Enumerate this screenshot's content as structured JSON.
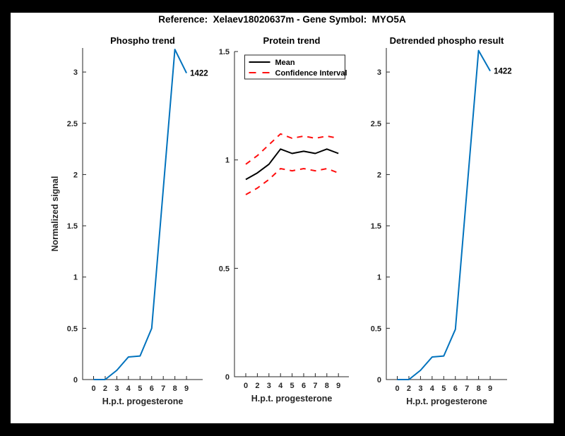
{
  "figure": {
    "title": "Reference:  Xelaev18020637m - Gene Symbol:  MYO5A",
    "frame_color": "#000000",
    "canvas_color": "#ffffff"
  },
  "colors": {
    "matlab_blue": "#0072BD",
    "ci_red": "#ff0f0f",
    "mean_black": "#000000",
    "axis_gray": "#262626"
  },
  "chart_data": [
    {
      "type": "line",
      "title": "Phospho trend",
      "xlabel": "H.p.t. progesterone",
      "ylabel": "Normalized signal",
      "x": [
        0,
        2,
        3,
        4,
        5,
        6,
        7,
        8,
        9
      ],
      "x_tick_labels": [
        "0",
        "2",
        "3",
        "4",
        "5",
        "6",
        "7",
        "8",
        "9"
      ],
      "x_spacing": "equal",
      "y_tick_labels": [
        "0",
        "0.5",
        "1",
        "1.5",
        "2",
        "2.5",
        "3"
      ],
      "y_ticks": [
        0,
        0.5,
        1,
        1.5,
        2,
        2.5,
        3
      ],
      "ylim": [
        0,
        3.24
      ],
      "grid": false,
      "series": [
        {
          "name": "phospho-signal",
          "color": "#0072BD",
          "style": "solid",
          "values": [
            0,
            0,
            0.09,
            0.22,
            0.23,
            0.5,
            1.86,
            3.22,
            2.99
          ]
        }
      ],
      "annotation": {
        "text": "1422",
        "at_x": 9,
        "value": 2.99
      }
    },
    {
      "type": "line",
      "title": "Protein trend",
      "xlabel": "H.p.t. progesterone",
      "ylabel": "",
      "x": [
        0,
        2,
        3,
        4,
        5,
        6,
        7,
        8,
        9
      ],
      "x_tick_labels": [
        "0",
        "2",
        "3",
        "4",
        "5",
        "6",
        "7",
        "8",
        "9"
      ],
      "x_spacing": "equal",
      "y_tick_labels": [
        "0",
        "0.5",
        "1",
        "1.5"
      ],
      "y_ticks": [
        0,
        0.5,
        1,
        1.5
      ],
      "ylim": [
        0,
        1.5
      ],
      "grid": false,
      "legend": {
        "position": "north-inside",
        "entries": [
          "Mean",
          "Confidence Interval"
        ]
      },
      "series": [
        {
          "name": "mean",
          "color": "#000000",
          "style": "solid",
          "values": [
            0.91,
            0.94,
            0.98,
            1.05,
            1.03,
            1.04,
            1.03,
            1.05,
            1.03
          ]
        },
        {
          "name": "ci-upper",
          "color": "#ff0f0f",
          "style": "dashed",
          "values": [
            0.98,
            1.02,
            1.07,
            1.12,
            1.1,
            1.11,
            1.1,
            1.11,
            1.1
          ]
        },
        {
          "name": "ci-lower",
          "color": "#ff0f0f",
          "style": "dashed",
          "values": [
            0.84,
            0.87,
            0.91,
            0.96,
            0.95,
            0.96,
            0.95,
            0.96,
            0.94
          ]
        }
      ]
    },
    {
      "type": "line",
      "title": "Detrended phospho result",
      "xlabel": "H.p.t. progesterone",
      "ylabel": "",
      "x": [
        0,
        2,
        3,
        4,
        5,
        6,
        7,
        8,
        9
      ],
      "x_tick_labels": [
        "0",
        "2",
        "3",
        "4",
        "5",
        "6",
        "7",
        "8",
        "9"
      ],
      "x_spacing": "equal",
      "y_tick_labels": [
        "0",
        "0.5",
        "1",
        "1.5",
        "2",
        "2.5",
        "3"
      ],
      "y_ticks": [
        0,
        0.5,
        1,
        1.5,
        2,
        2.5,
        3
      ],
      "ylim": [
        0,
        3.24
      ],
      "grid": false,
      "series": [
        {
          "name": "detrended-phospho",
          "color": "#0072BD",
          "style": "solid",
          "values": [
            0,
            0,
            0.09,
            0.22,
            0.23,
            0.49,
            1.85,
            3.21,
            3.01
          ]
        }
      ],
      "annotation": {
        "text": "1422",
        "at_x": 9,
        "value": 3.01
      }
    }
  ]
}
